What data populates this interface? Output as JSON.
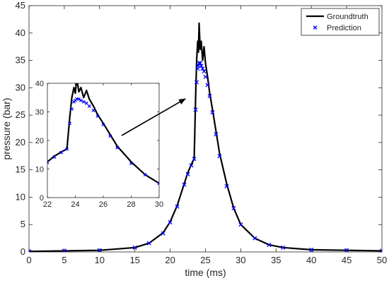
{
  "chart_data": {
    "type": "line",
    "xlabel": "time (ms)",
    "ylabel": "pressure (bar)",
    "xlim": [
      0,
      50
    ],
    "ylim": [
      0,
      45
    ],
    "xticks": [
      0,
      5,
      10,
      15,
      20,
      25,
      30,
      35,
      40,
      45,
      50
    ],
    "yticks": [
      0,
      5,
      10,
      15,
      20,
      25,
      30,
      35,
      40,
      45
    ],
    "grid": false,
    "legend_position": "top-right",
    "series": [
      {
        "name": "Groundtruth",
        "style": "line",
        "color": "#000000",
        "x": [
          0,
          5,
          10,
          15,
          17,
          19,
          20,
          21,
          22,
          22.5,
          23,
          23.4,
          23.6,
          23.75,
          23.9,
          24.0,
          24.1,
          24.25,
          24.4,
          24.6,
          24.8,
          25.0,
          25.3,
          25.6,
          26.0,
          26.5,
          27,
          28,
          29,
          30,
          32,
          34,
          36,
          40,
          45,
          50
        ],
        "y": [
          0.1,
          0.2,
          0.3,
          0.8,
          1.6,
          3.5,
          5.5,
          8.5,
          12.5,
          14.5,
          16,
          17,
          28,
          35,
          38.5,
          36.5,
          41.8,
          37,
          38.5,
          35,
          37.5,
          34.5,
          32,
          29,
          26,
          22,
          18,
          12.5,
          8,
          5,
          2.5,
          1.3,
          0.8,
          0.4,
          0.3,
          0.2
        ]
      },
      {
        "name": "Prediction",
        "style": "marker-x",
        "color": "#0000ff",
        "x": [
          0,
          5,
          10,
          15,
          17,
          19,
          20,
          21,
          22,
          22.5,
          23,
          23.4,
          23.6,
          23.75,
          23.9,
          24.0,
          24.1,
          24.25,
          24.4,
          24.6,
          24.8,
          25.0,
          25.3,
          25.6,
          26.0,
          26.5,
          27,
          28,
          29,
          30,
          32,
          34,
          36,
          40,
          45,
          50
        ],
        "y": [
          0.1,
          0.2,
          0.3,
          0.8,
          1.6,
          3.4,
          5.4,
          8.3,
          12.3,
          14.2,
          15.8,
          17,
          26,
          31,
          33.5,
          34,
          34.5,
          34.5,
          34,
          33.5,
          33,
          32,
          30.5,
          28.5,
          25.5,
          21.5,
          17.5,
          12,
          8,
          5,
          2.5,
          1.3,
          0.8,
          0.4,
          0.3,
          0.2
        ]
      }
    ],
    "inset": {
      "xlim": [
        22,
        30
      ],
      "ylim": [
        0,
        40
      ],
      "xticks": [
        22,
        24,
        26,
        28,
        30
      ],
      "yticks": [
        0,
        10,
        20,
        30,
        40
      ],
      "points_to_x_range": [
        23.5,
        25
      ]
    }
  }
}
